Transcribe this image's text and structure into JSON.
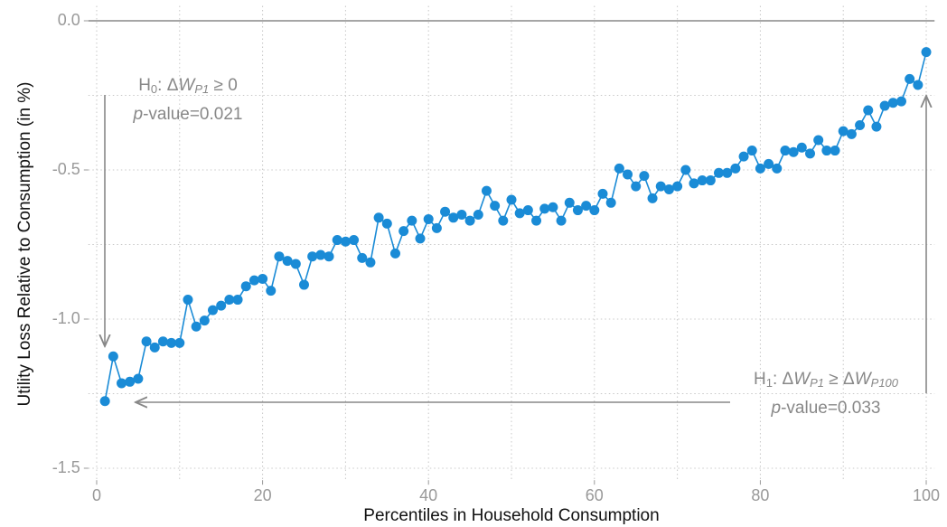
{
  "chart_data": {
    "type": "line",
    "x_label": "Percentiles in Household Consumption",
    "y_label": "Utility Loss Relative to Consumption (in %)",
    "x": [
      1,
      2,
      3,
      4,
      5,
      6,
      7,
      8,
      9,
      10,
      11,
      12,
      13,
      14,
      15,
      16,
      17,
      18,
      19,
      20,
      21,
      22,
      23,
      24,
      25,
      26,
      27,
      28,
      29,
      30,
      31,
      32,
      33,
      34,
      35,
      36,
      37,
      38,
      39,
      40,
      41,
      42,
      43,
      44,
      45,
      46,
      47,
      48,
      49,
      50,
      51,
      52,
      53,
      54,
      55,
      56,
      57,
      58,
      59,
      60,
      61,
      62,
      63,
      64,
      65,
      66,
      67,
      68,
      69,
      70,
      71,
      72,
      73,
      74,
      75,
      76,
      77,
      78,
      79,
      80,
      81,
      82,
      83,
      84,
      85,
      86,
      87,
      88,
      89,
      90,
      91,
      92,
      93,
      94,
      95,
      96,
      97,
      98,
      99,
      100
    ],
    "series": [
      {
        "color": "#1a8bd6",
        "values": [
          -1.275,
          -1.125,
          -1.215,
          -1.21,
          -1.2,
          -1.075,
          -1.095,
          -1.075,
          -1.08,
          -1.08,
          -0.935,
          -1.025,
          -1.005,
          -0.97,
          -0.955,
          -0.935,
          -0.935,
          -0.89,
          -0.87,
          -0.865,
          -0.905,
          -0.79,
          -0.805,
          -0.815,
          -0.885,
          -0.79,
          -0.785,
          -0.79,
          -0.735,
          -0.74,
          -0.735,
          -0.795,
          -0.81,
          -0.66,
          -0.68,
          -0.78,
          -0.705,
          -0.67,
          -0.73,
          -0.665,
          -0.695,
          -0.64,
          -0.66,
          -0.65,
          -0.67,
          -0.65,
          -0.57,
          -0.62,
          -0.67,
          -0.6,
          -0.645,
          -0.635,
          -0.67,
          -0.63,
          -0.625,
          -0.67,
          -0.61,
          -0.635,
          -0.62,
          -0.635,
          -0.58,
          -0.61,
          -0.495,
          -0.515,
          -0.555,
          -0.52,
          -0.595,
          -0.555,
          -0.565,
          -0.555,
          -0.5,
          -0.545,
          -0.535,
          -0.535,
          -0.51,
          -0.51,
          -0.495,
          -0.455,
          -0.435,
          -0.495,
          -0.48,
          -0.495,
          -0.435,
          -0.44,
          -0.425,
          -0.445,
          -0.4,
          -0.435,
          -0.435,
          -0.37,
          -0.38,
          -0.35,
          -0.3,
          -0.355,
          -0.285,
          -0.275,
          -0.27,
          -0.195,
          -0.215,
          -0.105
        ]
      }
    ],
    "xlim": [
      -1,
      101
    ],
    "ylim": [
      -1.54,
      0.05
    ],
    "xticks": [
      0,
      20,
      40,
      60,
      80,
      100
    ],
    "yticks": [
      {
        "value": 0,
        "label": "0.0"
      },
      -0.5,
      {
        "value": -1,
        "label": "-1.0"
      },
      -1.5
    ],
    "minor_xticks": [
      10,
      30,
      50,
      70,
      90
    ],
    "minor_yticks": [
      -0.25,
      -0.75,
      -1.25
    ],
    "grid": true,
    "reference_line": 0,
    "annotations": [
      {
        "line1": [
          "H",
          "0",
          ": Δ",
          "W",
          "P1",
          " ≥ 0"
        ],
        "line2": [
          "p",
          "-value=0.021"
        ]
      },
      {
        "line1": [
          "H",
          "1",
          ": Δ",
          "W",
          "P1",
          " ≥ Δ",
          "W",
          "P100"
        ],
        "line2": [
          "p",
          "-value=0.033"
        ]
      }
    ]
  }
}
